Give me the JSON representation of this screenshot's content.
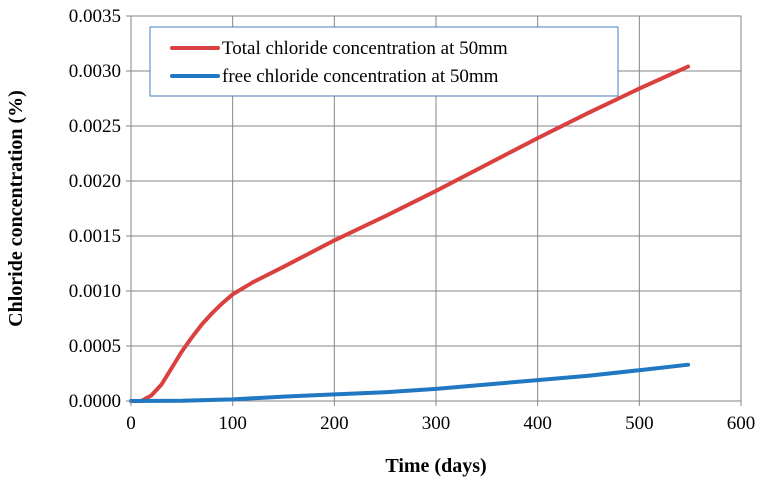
{
  "chart_data": {
    "type": "line",
    "title": "",
    "xlabel": "Time (days)",
    "ylabel": "Chloride concentration (%)",
    "xlim": [
      0,
      600
    ],
    "ylim": [
      0,
      0.0035
    ],
    "x_ticks": [
      "0",
      "100",
      "200",
      "300",
      "400",
      "500",
      "600"
    ],
    "y_ticks": [
      "0.0000",
      "0.0005",
      "0.0010",
      "0.0015",
      "0.0020",
      "0.0025",
      "0.0030",
      "0.0035"
    ],
    "grid": true,
    "legend_position": "top-left",
    "series": [
      {
        "name": "Total chloride concentration at 50mm",
        "color": "#d9403f",
        "x": [
          0,
          10,
          20,
          30,
          40,
          50,
          60,
          70,
          80,
          90,
          100,
          120,
          150,
          200,
          250,
          300,
          350,
          400,
          450,
          500,
          548
        ],
        "y": [
          0,
          0.0,
          5e-05,
          0.00015,
          0.0003,
          0.00045,
          0.00058,
          0.0007,
          0.0008,
          0.00089,
          0.00097,
          0.00108,
          0.00122,
          0.00146,
          0.00168,
          0.00191,
          0.00215,
          0.00239,
          0.00262,
          0.00284,
          0.00304
        ]
      },
      {
        "name": "free chloride concentration at 50mm",
        "color": "#1f78c1",
        "x": [
          0,
          50,
          100,
          150,
          200,
          250,
          300,
          350,
          400,
          450,
          500,
          548
        ],
        "y": [
          0,
          1.5e-06,
          1.5e-05,
          4e-05,
          6e-05,
          8e-05,
          0.00011,
          0.00015,
          0.00019,
          0.00023,
          0.00028,
          0.00033
        ]
      }
    ]
  }
}
